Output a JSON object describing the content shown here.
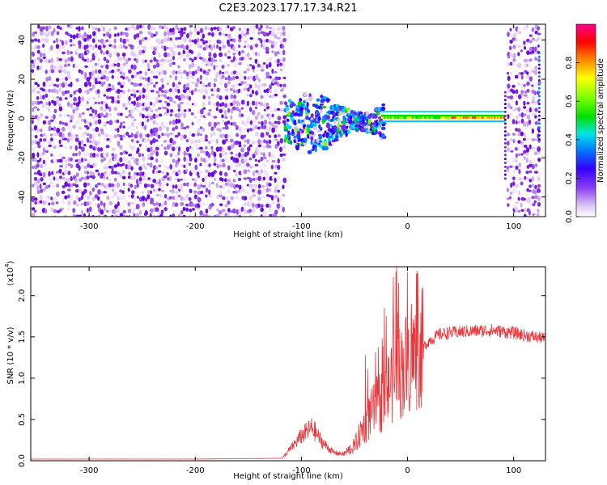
{
  "title": "C2E3.2023.177.17.34.R21",
  "chart_data": [
    {
      "type": "heatmap",
      "title": "C2E3.2023.177.17.34.R21",
      "xlabel": "Height of straight line (km)",
      "ylabel": "Frequency (Hz)",
      "xlim": [
        -355,
        130
      ],
      "ylim": [
        -50,
        48
      ],
      "x_ticks": [
        -300,
        -200,
        -100,
        0,
        100
      ],
      "y_ticks": [
        -40,
        -20,
        0,
        20,
        40
      ],
      "colorbar": {
        "label": "Normalized spectral amplitude",
        "range": [
          0,
          1
        ],
        "ticks": [
          0.0,
          0.2,
          0.4,
          0.6,
          0.8
        ],
        "colormap": "white-purple-blue-cyan-green-yellow-red-magenta"
      },
      "regions": [
        {
          "x_range": [
            -355,
            -117
          ],
          "freq_range": [
            -50,
            48
          ],
          "amplitude": "low, noisy (0.1-0.2)"
        },
        {
          "x_range": [
            -117,
            -25
          ],
          "freq_range": [
            -22,
            14
          ],
          "amplitude": "moderate, scattered (0.2-0.6)"
        },
        {
          "x_range": [
            -25,
            90
          ],
          "freq_range": [
            -3,
            4
          ],
          "amplitude": "high, narrow band near 0 Hz (0.5-0.9)"
        },
        {
          "x_range": [
            93,
            120
          ],
          "freq_range": [
            -50,
            48
          ],
          "amplitude": "low, noisy (0.1-0.2)"
        }
      ]
    },
    {
      "type": "line",
      "xlabel": "Height of straight line (km)",
      "ylabel": "SNR (10 * v/v)",
      "scale_label": "(x10",
      "scale_exp": "4",
      "scale_close": ")",
      "xlim": [
        -355,
        130
      ],
      "ylim": [
        0,
        2.35
      ],
      "x_ticks": [
        -300,
        -200,
        -100,
        0,
        100
      ],
      "y_ticks": [
        "0.0",
        "0.5",
        "1.0",
        "1.5",
        "2.0"
      ],
      "color": "#e8383d",
      "series": [
        {
          "x": [
            -355,
            -200,
            -118,
            -110,
            -100,
            -90,
            -80,
            -70,
            -60,
            -50,
            -40,
            -30,
            -20,
            -15,
            -10,
            -5,
            0,
            10,
            20,
            30,
            40,
            60,
            80,
            100,
            110,
            120,
            130
          ],
          "y": [
            0.02,
            0.02,
            0.03,
            0.15,
            0.3,
            0.4,
            0.22,
            0.1,
            0.08,
            0.18,
            0.45,
            0.65,
            0.8,
            1.0,
            1.05,
            1.1,
            1.2,
            1.3,
            1.45,
            1.53,
            1.55,
            1.57,
            1.58,
            1.55,
            1.52,
            1.5,
            1.48
          ]
        }
      ]
    }
  ]
}
